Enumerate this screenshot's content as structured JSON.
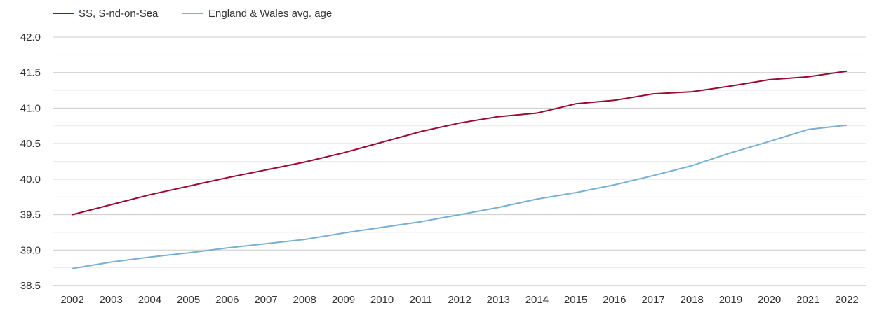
{
  "chart_data": {
    "type": "line",
    "title": "",
    "xlabel": "",
    "ylabel": "",
    "x": [
      "2002",
      "2003",
      "2004",
      "2005",
      "2006",
      "2007",
      "2008",
      "2009",
      "2010",
      "2011",
      "2012",
      "2013",
      "2014",
      "2015",
      "2016",
      "2017",
      "2018",
      "2019",
      "2020",
      "2021",
      "2022"
    ],
    "ylim": [
      38.5,
      42.0
    ],
    "yticks": [
      "38.5",
      "39.0",
      "39.5",
      "40.0",
      "40.5",
      "41.0",
      "41.5",
      "42.0"
    ],
    "grid": true,
    "legend_position": "top-left",
    "series": [
      {
        "name": "SS, S-nd-on-Sea",
        "color": "#9b0a32",
        "values": [
          39.5,
          39.64,
          39.78,
          39.9,
          40.02,
          40.13,
          40.24,
          40.37,
          40.52,
          40.67,
          40.79,
          40.88,
          40.93,
          41.06,
          41.11,
          41.2,
          41.23,
          41.31,
          41.4,
          41.44,
          41.52
        ]
      },
      {
        "name": "England & Wales avg. age",
        "color": "#78afd2",
        "values": [
          38.74,
          38.83,
          38.9,
          38.96,
          39.03,
          39.09,
          39.15,
          39.24,
          39.32,
          39.4,
          39.5,
          39.6,
          39.72,
          39.81,
          39.92,
          40.05,
          40.19,
          40.37,
          40.53,
          40.7,
          40.76
        ]
      }
    ]
  }
}
